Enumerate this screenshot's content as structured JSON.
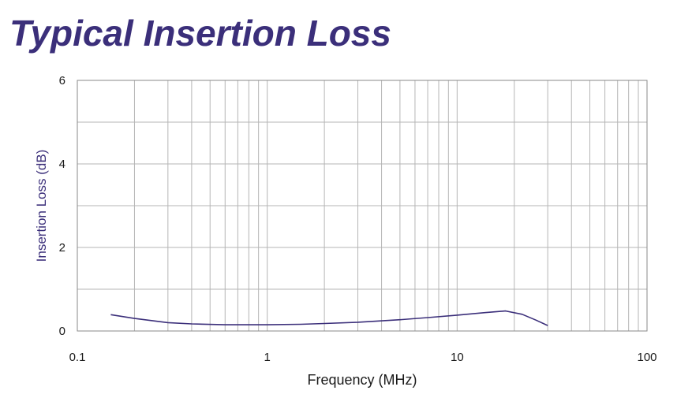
{
  "chart_data": {
    "type": "line",
    "title": "Typical Insertion Loss",
    "xlabel": "Frequency (MHz)",
    "ylabel": "Insertion Loss (dB)",
    "x_scale": "log",
    "xlim": [
      0.1,
      100
    ],
    "ylim": [
      0,
      6
    ],
    "x_ticks": [
      "0.1",
      "1",
      "10",
      "100"
    ],
    "y_ticks": [
      "0",
      "2",
      "4",
      "6"
    ],
    "grid": true,
    "legend": "none",
    "series": [
      {
        "color": "#3b2f7a",
        "x": [
          0.15,
          0.2,
          0.3,
          0.4,
          0.6,
          1,
          1.5,
          2,
          3,
          5,
          7,
          10,
          14,
          18,
          22,
          26,
          30
        ],
        "y": [
          0.39,
          0.3,
          0.2,
          0.17,
          0.15,
          0.15,
          0.16,
          0.18,
          0.21,
          0.27,
          0.32,
          0.38,
          0.44,
          0.48,
          0.4,
          0.26,
          0.13
        ]
      }
    ]
  }
}
